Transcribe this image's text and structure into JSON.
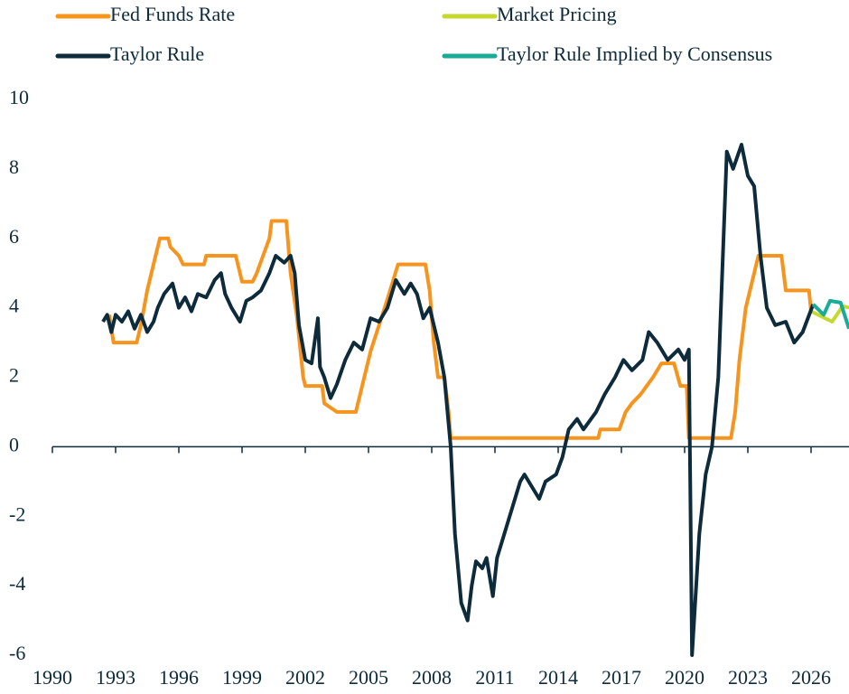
{
  "chart_data": {
    "type": "line",
    "xlim": [
      1990,
      2027.8
    ],
    "ylim": [
      -6,
      10
    ],
    "xticks": [
      1990,
      1993,
      1996,
      1999,
      2002,
      2005,
      2008,
      2011,
      2014,
      2017,
      2020,
      2023,
      2026
    ],
    "yticks": [
      -6,
      -4,
      -2,
      0,
      2,
      4,
      6,
      8,
      10
    ],
    "series": [
      {
        "name": "Fed Funds Rate",
        "color": "#f7941d",
        "x": [
          1992.7,
          1992.9,
          1994.0,
          1994.2,
          1994.5,
          1994.9,
          1995.1,
          1995.5,
          1995.6,
          1996.0,
          1996.2,
          1997.2,
          1997.3,
          1998.7,
          1998.9,
          1999.0,
          1999.5,
          1999.7,
          2000.0,
          2000.3,
          2000.4,
          2001.1,
          2001.3,
          2001.6,
          2001.9,
          2002.0,
          2002.8,
          2002.9,
          2003.5,
          2004.4,
          2004.7,
          2005.1,
          2005.5,
          2005.9,
          2006.4,
          2007.7,
          2007.9,
          2008.1,
          2008.3,
          2008.6,
          2008.8,
          2008.9,
          2015.9,
          2016.0,
          2016.9,
          2017.2,
          2017.5,
          2017.9,
          2018.5,
          2018.9,
          2019.5,
          2019.8,
          2020.1,
          2020.2,
          2022.2,
          2022.4,
          2022.6,
          2022.9,
          2023.2,
          2023.5,
          2024.6,
          2024.8,
          2025.9,
          2026.0
        ],
        "values": [
          3.8,
          3.0,
          3.0,
          3.5,
          4.5,
          5.5,
          6.0,
          6.0,
          5.75,
          5.5,
          5.25,
          5.25,
          5.5,
          5.5,
          5.0,
          4.75,
          4.75,
          5.0,
          5.5,
          6.0,
          6.5,
          6.5,
          5.0,
          3.75,
          2.0,
          1.75,
          1.75,
          1.25,
          1.0,
          1.0,
          1.75,
          2.75,
          3.5,
          4.25,
          5.25,
          5.25,
          4.5,
          3.0,
          2.0,
          2.0,
          1.0,
          0.25,
          0.25,
          0.5,
          0.5,
          1.0,
          1.25,
          1.5,
          2.0,
          2.4,
          2.4,
          1.75,
          1.75,
          0.25,
          0.25,
          1.0,
          2.5,
          4.0,
          4.75,
          5.5,
          5.5,
          4.5,
          4.5,
          3.9
        ]
      },
      {
        "name": "Market Pricing",
        "color": "#c4d82e",
        "x": [
          2026.0,
          2027.0,
          2027.5,
          2027.8
        ],
        "values": [
          3.9,
          3.6,
          4.05,
          4.0
        ]
      },
      {
        "name": "Taylor Rule",
        "color": "#0d2b3a",
        "x": [
          1992.4,
          1992.6,
          1992.8,
          1993.0,
          1993.3,
          1993.6,
          1993.9,
          1994.2,
          1994.5,
          1994.8,
          1995.0,
          1995.3,
          1995.7,
          1996.0,
          1996.3,
          1996.6,
          1996.9,
          1997.3,
          1997.7,
          1998.0,
          1998.2,
          1998.5,
          1998.9,
          1999.2,
          1999.5,
          1999.9,
          2000.3,
          2000.6,
          2001.0,
          2001.3,
          2001.5,
          2001.7,
          2002.0,
          2002.3,
          2002.6,
          2002.7,
          2002.9,
          2003.2,
          2003.5,
          2003.9,
          2004.3,
          2004.7,
          2005.1,
          2005.5,
          2005.9,
          2006.3,
          2006.7,
          2007.0,
          2007.3,
          2007.6,
          2007.9,
          2008.3,
          2008.6,
          2008.9,
          2009.1,
          2009.4,
          2009.7,
          2009.9,
          2010.1,
          2010.4,
          2010.6,
          2010.9,
          2011.1,
          2011.7,
          2012.2,
          2012.4,
          2012.8,
          2013.1,
          2013.4,
          2013.9,
          2014.2,
          2014.5,
          2014.9,
          2015.2,
          2015.8,
          2016.2,
          2016.7,
          2017.1,
          2017.5,
          2018.0,
          2018.3,
          2018.7,
          2019.2,
          2019.7,
          2020.0,
          2020.2,
          2020.35,
          2020.7,
          2021.0,
          2021.3,
          2021.6,
          2022.0,
          2022.3,
          2022.7,
          2023.0,
          2023.3,
          2023.6,
          2023.9,
          2024.3,
          2024.8,
          2025.2,
          2025.6,
          2026.1
        ],
        "values": [
          3.6,
          3.8,
          3.3,
          3.8,
          3.6,
          3.9,
          3.4,
          3.8,
          3.3,
          3.6,
          4.0,
          4.4,
          4.7,
          4.0,
          4.3,
          3.9,
          4.4,
          4.3,
          4.8,
          5.0,
          4.4,
          4.0,
          3.6,
          4.2,
          4.3,
          4.5,
          5.0,
          5.5,
          5.3,
          5.5,
          5.0,
          3.5,
          2.5,
          2.4,
          3.7,
          2.3,
          2.0,
          1.4,
          1.8,
          2.5,
          3.0,
          2.8,
          3.7,
          3.6,
          4.0,
          4.8,
          4.4,
          4.7,
          4.4,
          3.7,
          4.0,
          3.0,
          2.0,
          0.0,
          -2.5,
          -4.5,
          -5.0,
          -4.0,
          -3.3,
          -3.5,
          -3.2,
          -4.3,
          -3.2,
          -2.0,
          -1.0,
          -0.8,
          -1.2,
          -1.5,
          -1.0,
          -0.8,
          -0.3,
          0.5,
          0.8,
          0.5,
          1.0,
          1.5,
          2.0,
          2.5,
          2.2,
          2.5,
          3.3,
          3.0,
          2.5,
          2.8,
          2.5,
          2.8,
          -6.0,
          -2.5,
          -0.8,
          0.0,
          2.0,
          8.5,
          8.0,
          8.7,
          7.8,
          7.5,
          5.5,
          4.0,
          3.5,
          3.6,
          3.0,
          3.3,
          4.1
        ]
      },
      {
        "name": "Taylor Rule Implied by Consensus",
        "color": "#1aab97",
        "x": [
          2026.1,
          2026.6,
          2026.9,
          2027.4,
          2027.8
        ],
        "values": [
          4.1,
          3.8,
          4.2,
          4.15,
          3.4
        ]
      }
    ]
  }
}
